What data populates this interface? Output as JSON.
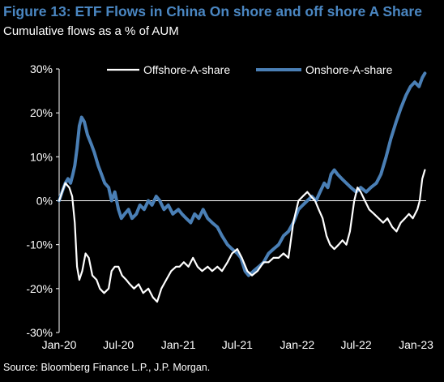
{
  "header": {
    "title": "Figure 13: ETF Flows in China On shore and off shore A Share",
    "subtitle": "Cumulative flows as a % of AUM",
    "source": "Source: Bloomberg Finance L.P., J.P. Morgan."
  },
  "colors": {
    "background": "#000000",
    "title": "#4a86c1",
    "offshore": "#ffffff",
    "onshore": "#4a7fb5",
    "axis": "#ffffff"
  },
  "chart_data": {
    "type": "line",
    "title": "Figure 13: ETF Flows in China On shore and off shore A Share",
    "subtitle": "Cumulative flows as a % of AUM",
    "xlabel": "",
    "ylabel": "",
    "ylim": [
      -30,
      30
    ],
    "xlim": [
      "2020-01",
      "2023-02"
    ],
    "y_ticks": [
      "30%",
      "20%",
      "10%",
      "0%",
      "-10%",
      "-20%",
      "-30%"
    ],
    "y_tick_values": [
      30,
      20,
      10,
      0,
      -10,
      -20,
      -30
    ],
    "x_ticks": [
      "Jan-20",
      "Jul-20",
      "Jan-21",
      "Jul-21",
      "Jan-22",
      "Jul-22",
      "Jan-23"
    ],
    "x_tick_values": [
      "2020-01",
      "2020-07",
      "2021-01",
      "2021-07",
      "2022-01",
      "2022-07",
      "2023-01"
    ],
    "legend_position": "top",
    "grid": false,
    "series": [
      {
        "name": "Offshore-A-share",
        "color": "#ffffff",
        "points": [
          [
            "2020-01-01",
            0
          ],
          [
            "2020-01-10",
            2
          ],
          [
            "2020-01-20",
            4
          ],
          [
            "2020-02-01",
            3
          ],
          [
            "2020-02-10",
            1
          ],
          [
            "2020-02-18",
            -5
          ],
          [
            "2020-02-25",
            -15
          ],
          [
            "2020-03-03",
            -18
          ],
          [
            "2020-03-12",
            -16
          ],
          [
            "2020-03-22",
            -12
          ],
          [
            "2020-04-01",
            -13
          ],
          [
            "2020-04-12",
            -17
          ],
          [
            "2020-04-25",
            -18
          ],
          [
            "2020-05-05",
            -20
          ],
          [
            "2020-05-18",
            -21
          ],
          [
            "2020-06-01",
            -20
          ],
          [
            "2020-06-10",
            -16
          ],
          [
            "2020-06-20",
            -15
          ],
          [
            "2020-07-01",
            -15
          ],
          [
            "2020-07-12",
            -17
          ],
          [
            "2020-07-25",
            -18
          ],
          [
            "2020-08-05",
            -19
          ],
          [
            "2020-08-18",
            -20
          ],
          [
            "2020-09-01",
            -19
          ],
          [
            "2020-09-15",
            -21
          ],
          [
            "2020-10-01",
            -20
          ],
          [
            "2020-10-15",
            -22
          ],
          [
            "2020-10-28",
            -23
          ],
          [
            "2020-11-10",
            -20
          ],
          [
            "2020-11-25",
            -18
          ],
          [
            "2020-12-10",
            -16
          ],
          [
            "2020-12-25",
            -15
          ],
          [
            "2021-01-05",
            -15
          ],
          [
            "2021-01-18",
            -14
          ],
          [
            "2021-02-01",
            -15
          ],
          [
            "2021-02-15",
            -13
          ],
          [
            "2021-03-01",
            -15
          ],
          [
            "2021-03-15",
            -16
          ],
          [
            "2021-04-01",
            -15
          ],
          [
            "2021-04-15",
            -16
          ],
          [
            "2021-05-01",
            -15
          ],
          [
            "2021-05-15",
            -16
          ],
          [
            "2021-06-01",
            -14
          ],
          [
            "2021-06-15",
            -12
          ],
          [
            "2021-07-01",
            -11
          ],
          [
            "2021-07-15",
            -13
          ],
          [
            "2021-08-01",
            -16
          ],
          [
            "2021-08-15",
            -17
          ],
          [
            "2021-09-01",
            -16
          ],
          [
            "2021-09-20",
            -14
          ],
          [
            "2021-10-05",
            -14
          ],
          [
            "2021-10-20",
            -13
          ],
          [
            "2021-11-05",
            -13
          ],
          [
            "2021-11-20",
            -12
          ],
          [
            "2021-12-05",
            -13
          ],
          [
            "2021-12-20",
            -5
          ],
          [
            "2022-01-05",
            0
          ],
          [
            "2022-01-18",
            1
          ],
          [
            "2022-02-01",
            2
          ],
          [
            "2022-02-12",
            1
          ],
          [
            "2022-02-25",
            0
          ],
          [
            "2022-03-08",
            -2
          ],
          [
            "2022-03-20",
            -4
          ],
          [
            "2022-04-01",
            -8
          ],
          [
            "2022-04-12",
            -10
          ],
          [
            "2022-04-25",
            -11
          ],
          [
            "2022-05-08",
            -10
          ],
          [
            "2022-05-20",
            -9
          ],
          [
            "2022-06-01",
            -10
          ],
          [
            "2022-06-12",
            -7
          ],
          [
            "2022-06-25",
            0
          ],
          [
            "2022-07-05",
            3
          ],
          [
            "2022-07-15",
            2
          ],
          [
            "2022-07-28",
            0
          ],
          [
            "2022-08-10",
            -2
          ],
          [
            "2022-08-25",
            -3
          ],
          [
            "2022-09-08",
            -4
          ],
          [
            "2022-09-22",
            -5
          ],
          [
            "2022-10-05",
            -4
          ],
          [
            "2022-10-20",
            -6
          ],
          [
            "2022-11-02",
            -7
          ],
          [
            "2022-11-15",
            -5
          ],
          [
            "2022-11-28",
            -4
          ],
          [
            "2022-12-10",
            -3
          ],
          [
            "2022-12-22",
            -4
          ],
          [
            "2023-01-05",
            -2
          ],
          [
            "2023-01-12",
            0
          ],
          [
            "2023-01-20",
            5
          ],
          [
            "2023-01-28",
            7
          ]
        ]
      },
      {
        "name": "Onshore-A-share",
        "color": "#4a7fb5",
        "points": [
          [
            "2020-01-01",
            0
          ],
          [
            "2020-01-10",
            2
          ],
          [
            "2020-01-20",
            4
          ],
          [
            "2020-01-28",
            5
          ],
          [
            "2020-02-05",
            4
          ],
          [
            "2020-02-12",
            6
          ],
          [
            "2020-02-18",
            8
          ],
          [
            "2020-02-25",
            12
          ],
          [
            "2020-03-03",
            17
          ],
          [
            "2020-03-10",
            19
          ],
          [
            "2020-03-18",
            18
          ],
          [
            "2020-03-28",
            15
          ],
          [
            "2020-04-08",
            13
          ],
          [
            "2020-04-18",
            11
          ],
          [
            "2020-04-30",
            8
          ],
          [
            "2020-05-10",
            6
          ],
          [
            "2020-05-20",
            4
          ],
          [
            "2020-06-01",
            3
          ],
          [
            "2020-06-10",
            0
          ],
          [
            "2020-06-20",
            2
          ],
          [
            "2020-07-01",
            -2
          ],
          [
            "2020-07-10",
            -4
          ],
          [
            "2020-07-20",
            -3
          ],
          [
            "2020-08-01",
            -2
          ],
          [
            "2020-08-12",
            -4
          ],
          [
            "2020-08-25",
            -3
          ],
          [
            "2020-09-05",
            -1
          ],
          [
            "2020-09-18",
            -2
          ],
          [
            "2020-10-01",
            0
          ],
          [
            "2020-10-12",
            -1
          ],
          [
            "2020-10-25",
            1
          ],
          [
            "2020-11-05",
            0
          ],
          [
            "2020-11-18",
            -2
          ],
          [
            "2020-12-01",
            -1
          ],
          [
            "2020-12-15",
            -3
          ],
          [
            "2021-01-01",
            -2
          ],
          [
            "2021-01-12",
            -3
          ],
          [
            "2021-01-25",
            -4
          ],
          [
            "2021-02-08",
            -5
          ],
          [
            "2021-02-20",
            -3
          ],
          [
            "2021-03-05",
            -4
          ],
          [
            "2021-03-18",
            -2
          ],
          [
            "2021-04-01",
            -4
          ],
          [
            "2021-04-15",
            -5
          ],
          [
            "2021-05-01",
            -6
          ],
          [
            "2021-05-15",
            -8
          ],
          [
            "2021-06-01",
            -10
          ],
          [
            "2021-06-15",
            -11
          ],
          [
            "2021-07-01",
            -12
          ],
          [
            "2021-07-12",
            -13
          ],
          [
            "2021-07-25",
            -16
          ],
          [
            "2021-08-05",
            -17
          ],
          [
            "2021-08-20",
            -16
          ],
          [
            "2021-09-05",
            -15
          ],
          [
            "2021-09-20",
            -14
          ],
          [
            "2021-10-05",
            -12
          ],
          [
            "2021-10-20",
            -11
          ],
          [
            "2021-11-05",
            -10
          ],
          [
            "2021-11-20",
            -8
          ],
          [
            "2021-12-05",
            -7
          ],
          [
            "2021-12-20",
            -5
          ],
          [
            "2022-01-05",
            -2
          ],
          [
            "2022-01-18",
            -1
          ],
          [
            "2022-02-01",
            0
          ],
          [
            "2022-02-15",
            1
          ],
          [
            "2022-02-28",
            0
          ],
          [
            "2022-03-12",
            2
          ],
          [
            "2022-03-25",
            4
          ],
          [
            "2022-04-05",
            3
          ],
          [
            "2022-04-15",
            6
          ],
          [
            "2022-04-25",
            7
          ],
          [
            "2022-05-05",
            6
          ],
          [
            "2022-05-18",
            5
          ],
          [
            "2022-06-01",
            4
          ],
          [
            "2022-06-15",
            3
          ],
          [
            "2022-07-01",
            2
          ],
          [
            "2022-07-15",
            3
          ],
          [
            "2022-08-01",
            2
          ],
          [
            "2022-08-15",
            3
          ],
          [
            "2022-09-01",
            4
          ],
          [
            "2022-09-15",
            6
          ],
          [
            "2022-10-01",
            10
          ],
          [
            "2022-10-15",
            14
          ],
          [
            "2022-11-01",
            18
          ],
          [
            "2022-11-15",
            21
          ],
          [
            "2022-12-01",
            24
          ],
          [
            "2022-12-15",
            26
          ],
          [
            "2022-12-28",
            27
          ],
          [
            "2023-01-10",
            26
          ],
          [
            "2023-01-20",
            28
          ],
          [
            "2023-01-28",
            29
          ]
        ]
      }
    ]
  }
}
